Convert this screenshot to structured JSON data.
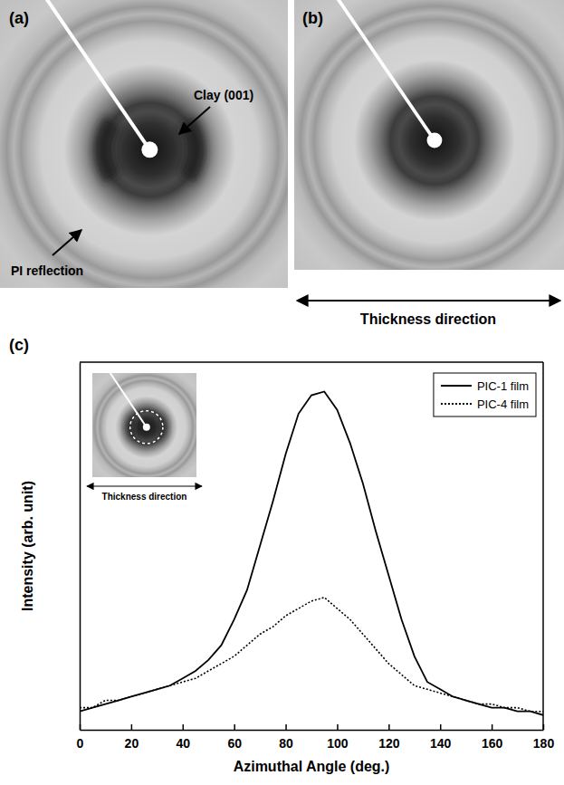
{
  "images": {
    "a": {
      "label": "(a)",
      "annotations": [
        "Clay (001)",
        "PI reflection"
      ]
    },
    "b": {
      "label": "(b)",
      "axis_label": "Thickness direction"
    }
  },
  "chart_data": {
    "type": "line",
    "panel_label": "(c)",
    "inset_label": "Thickness direction",
    "xlabel": "Azimuthal Angle (deg.)",
    "ylabel": "Intensity (arb. unit)",
    "x": [
      0,
      5,
      10,
      15,
      20,
      25,
      30,
      35,
      40,
      45,
      50,
      55,
      60,
      65,
      70,
      75,
      80,
      85,
      90,
      95,
      100,
      105,
      110,
      115,
      120,
      125,
      130,
      135,
      140,
      145,
      150,
      155,
      160,
      165,
      170,
      175,
      180
    ],
    "xlim": [
      0,
      180
    ],
    "xticks": [
      0,
      20,
      40,
      60,
      80,
      100,
      120,
      140,
      160,
      180
    ],
    "ylim": [
      0,
      100
    ],
    "tick_labels": "x",
    "legend": "upper right",
    "series": [
      {
        "name": "PIC-1 film",
        "color": "#000000",
        "line_style": "solid",
        "values": [
          5,
          6,
          7,
          8,
          9,
          10,
          11,
          12,
          14,
          16,
          19,
          23,
          30,
          38,
          50,
          62,
          75,
          86,
          91,
          92,
          87,
          78,
          67,
          54,
          42,
          30,
          20,
          13,
          11,
          9,
          8,
          7,
          6,
          6,
          5,
          5,
          4
        ]
      },
      {
        "name": "PIC-4 film",
        "color": "#000000",
        "line_style": "dotted",
        "values": [
          6,
          6,
          8,
          8,
          9,
          10,
          11,
          12,
          13,
          14,
          16,
          18,
          20,
          23,
          26,
          28,
          31,
          33,
          35,
          36,
          33,
          30,
          26,
          22,
          18,
          15,
          12,
          11,
          10,
          9,
          8,
          7,
          7,
          6,
          6,
          5,
          5
        ]
      }
    ]
  }
}
